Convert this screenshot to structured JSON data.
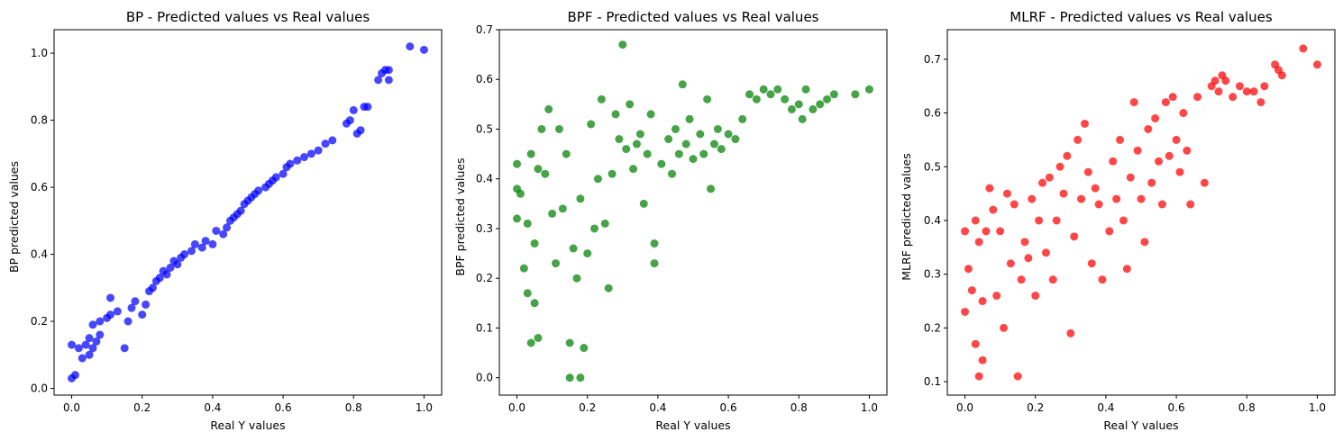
{
  "chart_data": [
    {
      "type": "scatter",
      "title": "BP - Predicted values vs Real values",
      "xlabel": "Real Y values",
      "ylabel": "BP predicted values",
      "color": "#0000ff",
      "xlim": [
        -0.05,
        1.05
      ],
      "ylim": [
        -0.02,
        1.07
      ],
      "xticks": [
        0.0,
        0.2,
        0.4,
        0.6,
        0.8,
        1.0
      ],
      "yticks": [
        0.0,
        0.2,
        0.4,
        0.6,
        0.8,
        1.0
      ],
      "points": [
        [
          0.0,
          0.03
        ],
        [
          0.01,
          0.04
        ],
        [
          0.0,
          0.13
        ],
        [
          0.02,
          0.12
        ],
        [
          0.03,
          0.09
        ],
        [
          0.04,
          0.13
        ],
        [
          0.05,
          0.1
        ],
        [
          0.05,
          0.15
        ],
        [
          0.06,
          0.12
        ],
        [
          0.07,
          0.14
        ],
        [
          0.08,
          0.16
        ],
        [
          0.06,
          0.19
        ],
        [
          0.08,
          0.2
        ],
        [
          0.1,
          0.21
        ],
        [
          0.11,
          0.22
        ],
        [
          0.11,
          0.27
        ],
        [
          0.13,
          0.23
        ],
        [
          0.15,
          0.12
        ],
        [
          0.16,
          0.2
        ],
        [
          0.17,
          0.24
        ],
        [
          0.18,
          0.26
        ],
        [
          0.2,
          0.22
        ],
        [
          0.21,
          0.25
        ],
        [
          0.22,
          0.29
        ],
        [
          0.23,
          0.3
        ],
        [
          0.24,
          0.32
        ],
        [
          0.25,
          0.33
        ],
        [
          0.26,
          0.35
        ],
        [
          0.27,
          0.34
        ],
        [
          0.28,
          0.36
        ],
        [
          0.29,
          0.38
        ],
        [
          0.3,
          0.37
        ],
        [
          0.31,
          0.39
        ],
        [
          0.32,
          0.4
        ],
        [
          0.34,
          0.41
        ],
        [
          0.35,
          0.43
        ],
        [
          0.37,
          0.42
        ],
        [
          0.38,
          0.44
        ],
        [
          0.4,
          0.43
        ],
        [
          0.41,
          0.47
        ],
        [
          0.43,
          0.46
        ],
        [
          0.44,
          0.48
        ],
        [
          0.45,
          0.5
        ],
        [
          0.46,
          0.51
        ],
        [
          0.47,
          0.52
        ],
        [
          0.48,
          0.53
        ],
        [
          0.49,
          0.55
        ],
        [
          0.5,
          0.56
        ],
        [
          0.51,
          0.57
        ],
        [
          0.52,
          0.58
        ],
        [
          0.53,
          0.59
        ],
        [
          0.55,
          0.6
        ],
        [
          0.56,
          0.61
        ],
        [
          0.57,
          0.62
        ],
        [
          0.58,
          0.63
        ],
        [
          0.6,
          0.64
        ],
        [
          0.61,
          0.66
        ],
        [
          0.62,
          0.67
        ],
        [
          0.64,
          0.68
        ],
        [
          0.66,
          0.69
        ],
        [
          0.68,
          0.7
        ],
        [
          0.7,
          0.71
        ],
        [
          0.72,
          0.73
        ],
        [
          0.74,
          0.74
        ],
        [
          0.78,
          0.79
        ],
        [
          0.79,
          0.8
        ],
        [
          0.8,
          0.83
        ],
        [
          0.81,
          0.76
        ],
        [
          0.82,
          0.77
        ],
        [
          0.83,
          0.84
        ],
        [
          0.84,
          0.84
        ],
        [
          0.87,
          0.92
        ],
        [
          0.88,
          0.94
        ],
        [
          0.89,
          0.95
        ],
        [
          0.9,
          0.92
        ],
        [
          0.9,
          0.95
        ],
        [
          0.96,
          1.02
        ],
        [
          1.0,
          1.01
        ]
      ]
    },
    {
      "type": "scatter",
      "title": "BPF - Predicted values vs Real values",
      "xlabel": "Real Y values",
      "ylabel": "BPF predicted values",
      "color": "#008000",
      "xlim": [
        -0.05,
        1.05
      ],
      "ylim": [
        -0.035,
        0.7
      ],
      "xticks": [
        0.0,
        0.2,
        0.4,
        0.6,
        0.8,
        1.0
      ],
      "yticks": [
        0.0,
        0.1,
        0.2,
        0.3,
        0.4,
        0.5,
        0.6,
        0.7
      ],
      "points": [
        [
          0.0,
          0.38
        ],
        [
          0.0,
          0.43
        ],
        [
          0.01,
          0.37
        ],
        [
          0.0,
          0.32
        ],
        [
          0.02,
          0.22
        ],
        [
          0.03,
          0.17
        ],
        [
          0.03,
          0.31
        ],
        [
          0.04,
          0.07
        ],
        [
          0.04,
          0.45
        ],
        [
          0.05,
          0.15
        ],
        [
          0.05,
          0.27
        ],
        [
          0.06,
          0.08
        ],
        [
          0.06,
          0.42
        ],
        [
          0.07,
          0.5
        ],
        [
          0.08,
          0.41
        ],
        [
          0.09,
          0.54
        ],
        [
          0.1,
          0.33
        ],
        [
          0.11,
          0.23
        ],
        [
          0.12,
          0.5
        ],
        [
          0.13,
          0.34
        ],
        [
          0.14,
          0.45
        ],
        [
          0.15,
          0.0
        ],
        [
          0.15,
          0.07
        ],
        [
          0.16,
          0.26
        ],
        [
          0.17,
          0.2
        ],
        [
          0.18,
          0.0
        ],
        [
          0.18,
          0.36
        ],
        [
          0.19,
          0.06
        ],
        [
          0.2,
          0.25
        ],
        [
          0.21,
          0.51
        ],
        [
          0.22,
          0.3
        ],
        [
          0.23,
          0.4
        ],
        [
          0.24,
          0.56
        ],
        [
          0.25,
          0.31
        ],
        [
          0.26,
          0.18
        ],
        [
          0.27,
          0.41
        ],
        [
          0.28,
          0.53
        ],
        [
          0.29,
          0.48
        ],
        [
          0.3,
          0.67
        ],
        [
          0.31,
          0.46
        ],
        [
          0.32,
          0.55
        ],
        [
          0.33,
          0.42
        ],
        [
          0.34,
          0.47
        ],
        [
          0.35,
          0.49
        ],
        [
          0.36,
          0.35
        ],
        [
          0.37,
          0.45
        ],
        [
          0.38,
          0.53
        ],
        [
          0.39,
          0.27
        ],
        [
          0.39,
          0.23
        ],
        [
          0.41,
          0.43
        ],
        [
          0.43,
          0.48
        ],
        [
          0.44,
          0.41
        ],
        [
          0.45,
          0.5
        ],
        [
          0.46,
          0.45
        ],
        [
          0.47,
          0.59
        ],
        [
          0.48,
          0.47
        ],
        [
          0.49,
          0.52
        ],
        [
          0.5,
          0.44
        ],
        [
          0.52,
          0.49
        ],
        [
          0.53,
          0.45
        ],
        [
          0.54,
          0.56
        ],
        [
          0.55,
          0.38
        ],
        [
          0.56,
          0.47
        ],
        [
          0.57,
          0.5
        ],
        [
          0.58,
          0.46
        ],
        [
          0.6,
          0.49
        ],
        [
          0.62,
          0.48
        ],
        [
          0.64,
          0.52
        ],
        [
          0.66,
          0.57
        ],
        [
          0.68,
          0.56
        ],
        [
          0.7,
          0.58
        ],
        [
          0.72,
          0.57
        ],
        [
          0.74,
          0.58
        ],
        [
          0.76,
          0.56
        ],
        [
          0.78,
          0.54
        ],
        [
          0.8,
          0.55
        ],
        [
          0.81,
          0.52
        ],
        [
          0.82,
          0.58
        ],
        [
          0.84,
          0.54
        ],
        [
          0.86,
          0.55
        ],
        [
          0.88,
          0.56
        ],
        [
          0.9,
          0.57
        ],
        [
          0.96,
          0.57
        ],
        [
          1.0,
          0.58
        ]
      ]
    },
    {
      "type": "scatter",
      "title": "MLRF - Predicted values vs Real values",
      "xlabel": "Real Y values",
      "ylabel": "MLRF predicted values",
      "color": "#ff0000",
      "xlim": [
        -0.05,
        1.05
      ],
      "ylim": [
        0.075,
        0.755
      ],
      "xticks": [
        0.0,
        0.2,
        0.4,
        0.6,
        0.8,
        1.0
      ],
      "yticks": [
        0.1,
        0.2,
        0.3,
        0.4,
        0.5,
        0.6,
        0.7
      ],
      "points": [
        [
          0.0,
          0.38
        ],
        [
          0.0,
          0.23
        ],
        [
          0.01,
          0.31
        ],
        [
          0.02,
          0.27
        ],
        [
          0.03,
          0.17
        ],
        [
          0.03,
          0.4
        ],
        [
          0.04,
          0.11
        ],
        [
          0.04,
          0.36
        ],
        [
          0.05,
          0.14
        ],
        [
          0.05,
          0.25
        ],
        [
          0.06,
          0.38
        ],
        [
          0.07,
          0.46
        ],
        [
          0.08,
          0.42
        ],
        [
          0.09,
          0.26
        ],
        [
          0.1,
          0.38
        ],
        [
          0.11,
          0.2
        ],
        [
          0.12,
          0.45
        ],
        [
          0.13,
          0.32
        ],
        [
          0.14,
          0.43
        ],
        [
          0.15,
          0.11
        ],
        [
          0.16,
          0.29
        ],
        [
          0.17,
          0.36
        ],
        [
          0.18,
          0.33
        ],
        [
          0.19,
          0.44
        ],
        [
          0.2,
          0.26
        ],
        [
          0.21,
          0.4
        ],
        [
          0.22,
          0.47
        ],
        [
          0.23,
          0.34
        ],
        [
          0.24,
          0.48
        ],
        [
          0.25,
          0.29
        ],
        [
          0.26,
          0.4
        ],
        [
          0.27,
          0.5
        ],
        [
          0.28,
          0.45
        ],
        [
          0.29,
          0.52
        ],
        [
          0.3,
          0.19
        ],
        [
          0.31,
          0.37
        ],
        [
          0.32,
          0.55
        ],
        [
          0.33,
          0.44
        ],
        [
          0.34,
          0.58
        ],
        [
          0.35,
          0.49
        ],
        [
          0.36,
          0.32
        ],
        [
          0.37,
          0.46
        ],
        [
          0.38,
          0.43
        ],
        [
          0.39,
          0.29
        ],
        [
          0.41,
          0.38
        ],
        [
          0.42,
          0.51
        ],
        [
          0.43,
          0.44
        ],
        [
          0.44,
          0.55
        ],
        [
          0.45,
          0.4
        ],
        [
          0.46,
          0.31
        ],
        [
          0.47,
          0.48
        ],
        [
          0.48,
          0.62
        ],
        [
          0.49,
          0.53
        ],
        [
          0.5,
          0.44
        ],
        [
          0.51,
          0.36
        ],
        [
          0.52,
          0.57
        ],
        [
          0.53,
          0.47
        ],
        [
          0.54,
          0.59
        ],
        [
          0.55,
          0.51
        ],
        [
          0.56,
          0.43
        ],
        [
          0.57,
          0.62
        ],
        [
          0.58,
          0.52
        ],
        [
          0.59,
          0.63
        ],
        [
          0.6,
          0.55
        ],
        [
          0.61,
          0.49
        ],
        [
          0.62,
          0.6
        ],
        [
          0.63,
          0.53
        ],
        [
          0.64,
          0.43
        ],
        [
          0.66,
          0.63
        ],
        [
          0.68,
          0.47
        ],
        [
          0.7,
          0.65
        ],
        [
          0.71,
          0.66
        ],
        [
          0.72,
          0.64
        ],
        [
          0.73,
          0.67
        ],
        [
          0.74,
          0.66
        ],
        [
          0.76,
          0.63
        ],
        [
          0.78,
          0.65
        ],
        [
          0.8,
          0.64
        ],
        [
          0.82,
          0.64
        ],
        [
          0.84,
          0.62
        ],
        [
          0.85,
          0.65
        ],
        [
          0.88,
          0.69
        ],
        [
          0.89,
          0.68
        ],
        [
          0.9,
          0.67
        ],
        [
          0.96,
          0.72
        ],
        [
          1.0,
          0.69
        ]
      ]
    }
  ]
}
